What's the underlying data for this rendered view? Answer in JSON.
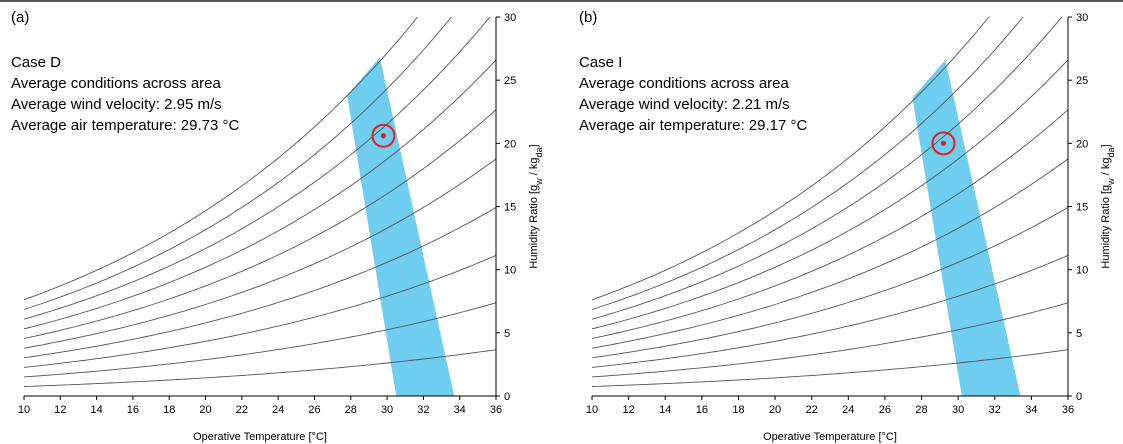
{
  "chart_data": [
    {
      "type": "line",
      "panel_label": "(a)",
      "annotations": [
        "Case D",
        "Average conditions across area",
        "Average wind velocity: 2.95 m/s",
        "Average air temperature: 29.73 °C"
      ],
      "xlabel": "Operative Temperature [°C]",
      "ylabel": "Humidity Ratio [g_w / kg_da]",
      "ylabel_parts": [
        "Humidity Ratio [g",
        "w",
        " / kg",
        "da",
        "]"
      ],
      "xlim": [
        10,
        36
      ],
      "ylim": [
        0,
        30
      ],
      "xticks": [
        "10",
        "12",
        "14",
        "16",
        "18",
        "20",
        "22",
        "24",
        "26",
        "28",
        "30",
        "32",
        "34",
        "36"
      ],
      "yticks": [
        "0",
        "5",
        "10",
        "15",
        "20",
        "25",
        "30"
      ],
      "rh_curves": [
        10,
        20,
        30,
        40,
        50,
        60,
        70,
        80,
        90,
        100
      ],
      "comfort_zone": {
        "color": "#6fcdf0",
        "polygon": [
          [
            30.5,
            0
          ],
          [
            33.7,
            0
          ],
          [
            29.6,
            26.8
          ],
          [
            27.8,
            23.8
          ]
        ]
      },
      "point": {
        "x": 29.8,
        "y": 20.6,
        "color": "#e0201b"
      },
      "grid": false
    },
    {
      "type": "line",
      "panel_label": "(b)",
      "annotations": [
        "Case I",
        "Average conditions across area",
        "Average wind velocity: 2.21 m/s",
        "Average air temperature: 29.17 °C"
      ],
      "xlabel": "Operative Temperature [°C]",
      "ylabel": "Humidity Ratio [g_w / kg_da]",
      "ylabel_parts": [
        "Humidity Ratio [g",
        "w",
        " / kg",
        "da",
        "]"
      ],
      "xlim": [
        10,
        36
      ],
      "ylim": [
        0,
        30
      ],
      "xticks": [
        "10",
        "12",
        "14",
        "16",
        "18",
        "20",
        "22",
        "24",
        "26",
        "28",
        "30",
        "32",
        "34",
        "36"
      ],
      "yticks": [
        "0",
        "5",
        "10",
        "15",
        "20",
        "25",
        "30"
      ],
      "rh_curves": [
        10,
        20,
        30,
        40,
        50,
        60,
        70,
        80,
        90,
        100
      ],
      "comfort_zone": {
        "color": "#6fcdf0",
        "polygon": [
          [
            30.2,
            0
          ],
          [
            33.4,
            0
          ],
          [
            29.3,
            26.6
          ],
          [
            27.5,
            23.6
          ]
        ]
      },
      "point": {
        "x": 29.2,
        "y": 20.0,
        "color": "#e0201b"
      },
      "grid": false
    }
  ]
}
